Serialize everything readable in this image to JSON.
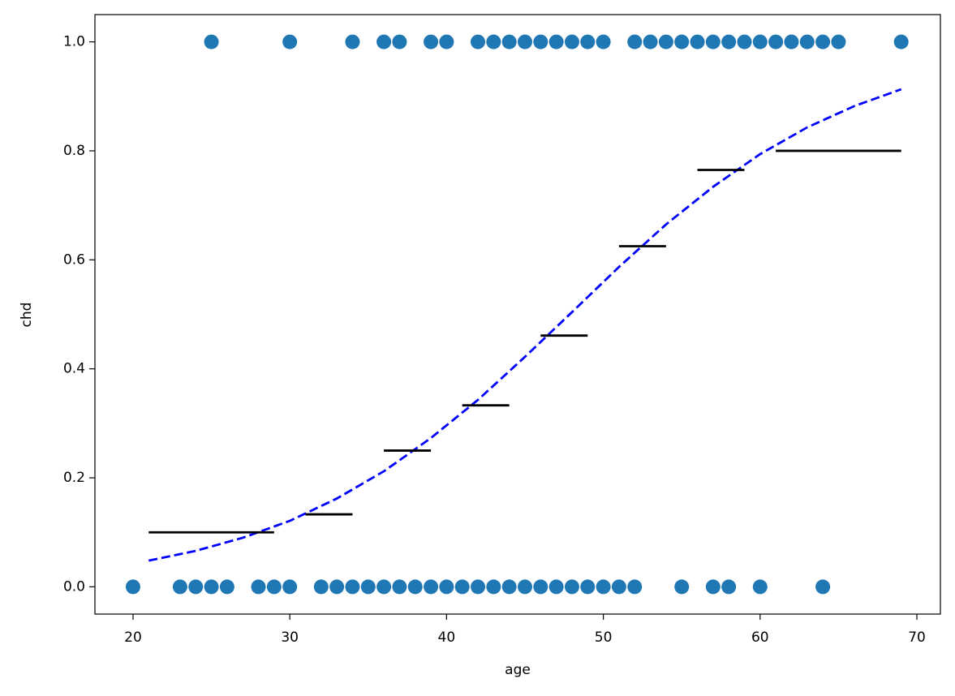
{
  "chart_data": {
    "type": "scatter",
    "x_label": "age",
    "y_label": "chd",
    "xlim": [
      17.57,
      71.5
    ],
    "ylim": [
      -0.05,
      1.05
    ],
    "xticks": [
      20,
      30,
      40,
      50,
      60,
      70
    ],
    "yticks": [
      {
        "value": 0,
        "label": "0.0"
      },
      0.2,
      0.4,
      0.6,
      0.8,
      {
        "value": 1,
        "label": "1.0"
      }
    ],
    "series": [
      {
        "type": "scatter",
        "color": "#1f77b4",
        "x": [
          25,
          30,
          34,
          36,
          37,
          39,
          40,
          42,
          43,
          44,
          45,
          46,
          47,
          48,
          49,
          50,
          52,
          53,
          54,
          55,
          56,
          57,
          58,
          59,
          60,
          61,
          62,
          63,
          64,
          65,
          69,
          20,
          23,
          24,
          25,
          26,
          28,
          29,
          30,
          32,
          33,
          34,
          35,
          36,
          37,
          38,
          39,
          40,
          41,
          42,
          43,
          44,
          45,
          46,
          47,
          48,
          49,
          50,
          51,
          52,
          55,
          57,
          58,
          60,
          64
        ],
        "values": [
          1,
          1,
          1,
          1,
          1,
          1,
          1,
          1,
          1,
          1,
          1,
          1,
          1,
          1,
          1,
          1,
          1,
          1,
          1,
          1,
          1,
          1,
          1,
          1,
          1,
          1,
          1,
          1,
          1,
          1,
          1,
          0,
          0,
          0,
          0,
          0,
          0,
          0,
          0,
          0,
          0,
          0,
          0,
          0,
          0,
          0,
          0,
          0,
          0,
          0,
          0,
          0,
          0,
          0,
          0,
          0,
          0,
          0,
          0,
          0,
          0,
          0,
          0,
          0,
          0
        ]
      },
      {
        "type": "line",
        "color": "#0000ff",
        "dashed": true,
        "x": [
          21,
          24,
          27,
          30,
          33,
          36,
          39,
          42,
          45,
          48,
          51,
          54,
          57,
          60,
          63,
          66,
          69
        ],
        "values": [
          0.048,
          0.066,
          0.09,
          0.121,
          0.162,
          0.212,
          0.273,
          0.343,
          0.422,
          0.504,
          0.587,
          0.665,
          0.734,
          0.794,
          0.843,
          0.882,
          0.913
        ]
      }
    ],
    "segments": {
      "color": "#000000",
      "x_start": [
        21,
        31,
        36,
        41,
        46,
        51,
        56,
        61
      ],
      "x_end": [
        29,
        34,
        39,
        44,
        49,
        54,
        59,
        69
      ],
      "values": [
        0.1,
        0.133,
        0.25,
        0.333,
        0.461,
        0.625,
        0.765,
        0.8
      ]
    }
  }
}
